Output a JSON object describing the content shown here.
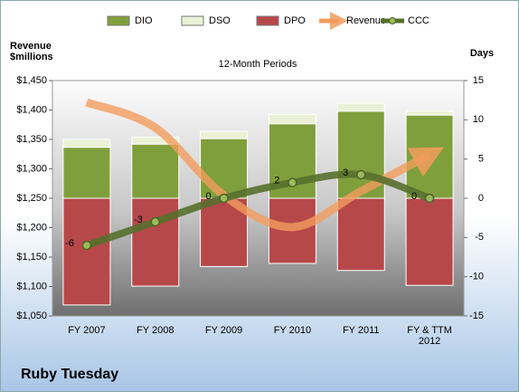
{
  "chart_data": {
    "type": "combo",
    "title": "12-Month Periods",
    "subtitle": "Ruby Tuesday",
    "y_label": "Revenue $millions",
    "y2_label": "Days",
    "categories": [
      "FY 2007",
      "FY 2008",
      "FY 2009",
      "FY 2010",
      "FY 2011",
      "FY & TTM 2012"
    ],
    "ylim": [
      1050,
      1450
    ],
    "yticks": [
      {
        "value": 1050,
        "label": "$1,050"
      },
      {
        "value": 1100,
        "label": "$1,100"
      },
      {
        "value": 1150,
        "label": "$1,150"
      },
      {
        "value": 1200,
        "label": "$1,200"
      },
      {
        "value": 1250,
        "label": "$1,250"
      },
      {
        "value": 1300,
        "label": "$1,300"
      },
      {
        "value": 1350,
        "label": "$1,350"
      },
      {
        "value": 1400,
        "label": "$1,400"
      },
      {
        "value": 1450,
        "label": "$1,450"
      }
    ],
    "y2lim": [
      -15,
      15
    ],
    "y2ticks": [
      -15,
      -10,
      -5,
      0,
      5,
      10,
      15
    ],
    "legend": "top",
    "series": [
      {
        "name": "DIO",
        "type": "bar",
        "axis": "y2",
        "color": "#7f9f3c",
        "values": [
          6.5,
          6.9,
          7.6,
          9.5,
          11.1,
          10.6
        ]
      },
      {
        "name": "DSO",
        "type": "bar",
        "axis": "y2",
        "color": "#ebf1d6",
        "values": [
          1.0,
          0.9,
          0.9,
          1.2,
          1.0,
          0.5
        ]
      },
      {
        "name": "DPO",
        "type": "bar",
        "axis": "y2",
        "color": "#b6484a",
        "values": [
          -13.6,
          -11.2,
          -8.7,
          -8.3,
          -9.2,
          -11.1
        ]
      },
      {
        "name": "Revenue",
        "type": "arrow-line",
        "color": "#f29c5c",
        "values": [
          1413,
          1370,
          1255,
          1201,
          1262,
          1324
        ]
      },
      {
        "name": "CCC",
        "type": "line",
        "axis": "y2",
        "color": "#56702c",
        "values": [
          -6,
          -3,
          0,
          2,
          3,
          0
        ]
      }
    ]
  }
}
